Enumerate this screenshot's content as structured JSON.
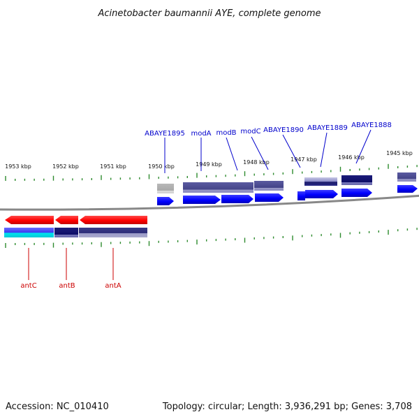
{
  "title": "Acinetobacter baumannii AYE, complete genome",
  "footer": {
    "accession": "Accession: NC_010410",
    "summary": "Topology: circular; Length: 3,936,291 bp; Genes: 3,708"
  },
  "ticks": [
    "1953 kbp",
    "1952 kbp",
    "1951 kbp",
    "1950 kbp",
    "1949 kbp",
    "1948 kbp",
    "1947 kbp",
    "1946 kbp",
    "1945 kbp"
  ],
  "colors": {
    "forward_gene": "#0000ff",
    "reverse_gene": "#ff0000",
    "forward_label": "#0000cc",
    "reverse_label": "#cc0000",
    "backbone": "#888888",
    "tick_marks": "#2e8b2e",
    "protein_band": "#4b4b8f",
    "cyan_band": "#00e5ee"
  },
  "genes_top": [
    "ABAYE1895",
    "modA",
    "modB",
    "modC",
    "ABAYE1890",
    "ABAYE1889",
    "ABAYE1888"
  ],
  "genes_bottom": [
    "antC",
    "antB",
    "antA"
  ]
}
